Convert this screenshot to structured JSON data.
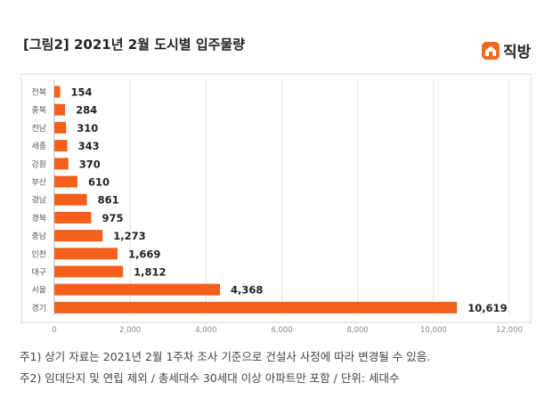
{
  "title": "[그림2] 2021년 2월 도시별 입주물량",
  "brand": {
    "name": "직방",
    "icon": "house-logo-icon",
    "color": "#f26a1b"
  },
  "chart_data": {
    "type": "bar",
    "orientation": "horizontal",
    "categories": [
      "전북",
      "충북",
      "전남",
      "세종",
      "강원",
      "부산",
      "경남",
      "경북",
      "충남",
      "인천",
      "대구",
      "서울",
      "경기"
    ],
    "values": [
      154,
      284,
      310,
      343,
      370,
      610,
      861,
      975,
      1273,
      1669,
      1812,
      4368,
      10619
    ],
    "value_labels": [
      "154",
      "284",
      "310",
      "343",
      "370",
      "610",
      "861",
      "975",
      "1,273",
      "1,669",
      "1,812",
      "4,368",
      "10,619"
    ],
    "x_ticks": [
      0,
      2000,
      4000,
      6000,
      8000,
      10000,
      12000
    ],
    "x_tick_labels": [
      "0",
      "2,000",
      "4,000",
      "6,000",
      "8,000",
      "10,000",
      "12,000"
    ],
    "xlim": [
      0,
      12000
    ],
    "grid": true,
    "bar_color": "#f4601b"
  },
  "notes": [
    "주1) 상기 자료는 2021년 2월 1주차 조사 기준으로 건설사 사정에 따라 변경될 수 있음.",
    "주2) 임대단지 및 연립 제외 / 총세대수 30세대 이상 아파트만 포함 / 단위: 세대수"
  ]
}
